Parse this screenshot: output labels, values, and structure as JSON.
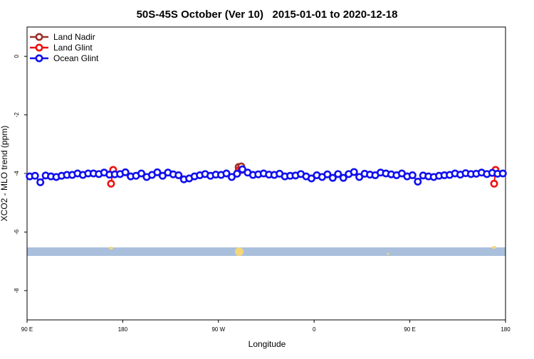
{
  "chart_data": {
    "type": "line",
    "title": "50S-45S October (Ver 10)   2015-01-01 to 2020-12-18",
    "xlabel": "Longitude",
    "ylabel": "XCO2 - MLO trend (ppm)",
    "xlim": [
      90,
      540
    ],
    "ylim": [
      -9,
      1
    ],
    "xticks": [
      {
        "value": 90,
        "label": "90 E"
      },
      180,
      {
        "value": 270,
        "label": "90 W"
      },
      {
        "value": 360,
        "label": "0"
      },
      {
        "value": 450,
        "label": "90 E"
      },
      {
        "value": 540,
        "label": "180"
      }
    ],
    "yticks": [
      0,
      -2,
      -4,
      -6,
      -8
    ],
    "legend": "top-left",
    "series": [
      {
        "name": "Land Nadir",
        "color": "#a0302a",
        "x": [
          289,
          291.5
        ],
        "values": [
          -3.78,
          -3.76
        ]
      },
      {
        "name": "Land Glint",
        "color": "#ee1111",
        "x": [
          169,
          171,
          null,
          289,
          291.5,
          null,
          529.3,
          530.6
        ],
        "values": [
          -4.35,
          -3.88,
          null,
          -3.9,
          -3.88,
          null,
          -4.35,
          -3.88
        ]
      },
      {
        "name": "Ocean Glint",
        "color": "#1010ee",
        "x": [
          92.5,
          97.5,
          102.5,
          107.5,
          112.5,
          117.5,
          122.5,
          127.5,
          132.5,
          137.5,
          142.5,
          147.5,
          152.5,
          157.5,
          162.5,
          167.5,
          172.5,
          177.5,
          182.5,
          187.5,
          192.5,
          197.5,
          202.5,
          207.5,
          212.5,
          217.5,
          222.5,
          227.5,
          232.5,
          237.5,
          242.5,
          247.5,
          252.5,
          257.5,
          262.5,
          267.5,
          272.5,
          277.5,
          282.5,
          287.5,
          292.5,
          297.5,
          302.5,
          307.5,
          312.5,
          317.5,
          322.5,
          327.5,
          332.5,
          337.5,
          342.5,
          347.5,
          352.5,
          357.5,
          362.5,
          367.5,
          372.5,
          377.5,
          382.5,
          387.5,
          392.5,
          397.5,
          402.5,
          407.5,
          412.5,
          417.5,
          422.5,
          427.5,
          432.5,
          437.5,
          442.5,
          447.5,
          452.5,
          457.5,
          462.5,
          467.5,
          472.5,
          477.5,
          482.5,
          487.5,
          492.5,
          497.5,
          502.5,
          507.5,
          512.5,
          517.5,
          522.5,
          527.5,
          532.5,
          537.5
        ],
        "values": [
          -4.1,
          -4.08,
          -4.3,
          -4.07,
          -4.1,
          -4.12,
          -4.08,
          -4.05,
          -4.05,
          -4.0,
          -4.05,
          -4.0,
          -4.0,
          -4.02,
          -3.97,
          -4.04,
          -4.03,
          -4.02,
          -3.96,
          -4.1,
          -4.08,
          -4.0,
          -4.12,
          -4.05,
          -3.96,
          -4.08,
          -3.97,
          -4.03,
          -4.06,
          -4.2,
          -4.17,
          -4.1,
          -4.06,
          -4.02,
          -4.08,
          -4.04,
          -4.05,
          -4.0,
          -4.12,
          -4.01,
          -3.86,
          -3.97,
          -4.05,
          -4.03,
          -4.0,
          -4.04,
          -4.05,
          -4.01,
          -4.1,
          -4.08,
          -4.07,
          -4.02,
          -4.1,
          -4.17,
          -4.06,
          -4.12,
          -4.03,
          -4.15,
          -4.02,
          -4.15,
          -4.02,
          -3.95,
          -4.12,
          -4.01,
          -4.04,
          -4.06,
          -3.97,
          -4.0,
          -4.03,
          -4.06,
          -4.0,
          -4.1,
          -4.06,
          -4.28,
          -4.07,
          -4.1,
          -4.12,
          -4.08,
          -4.06,
          -4.05,
          -4.0,
          -4.04,
          -3.99,
          -4.02,
          -4.01,
          -3.97,
          -4.02,
          -3.98,
          -4.01,
          -4.0
        ]
      }
    ]
  }
}
